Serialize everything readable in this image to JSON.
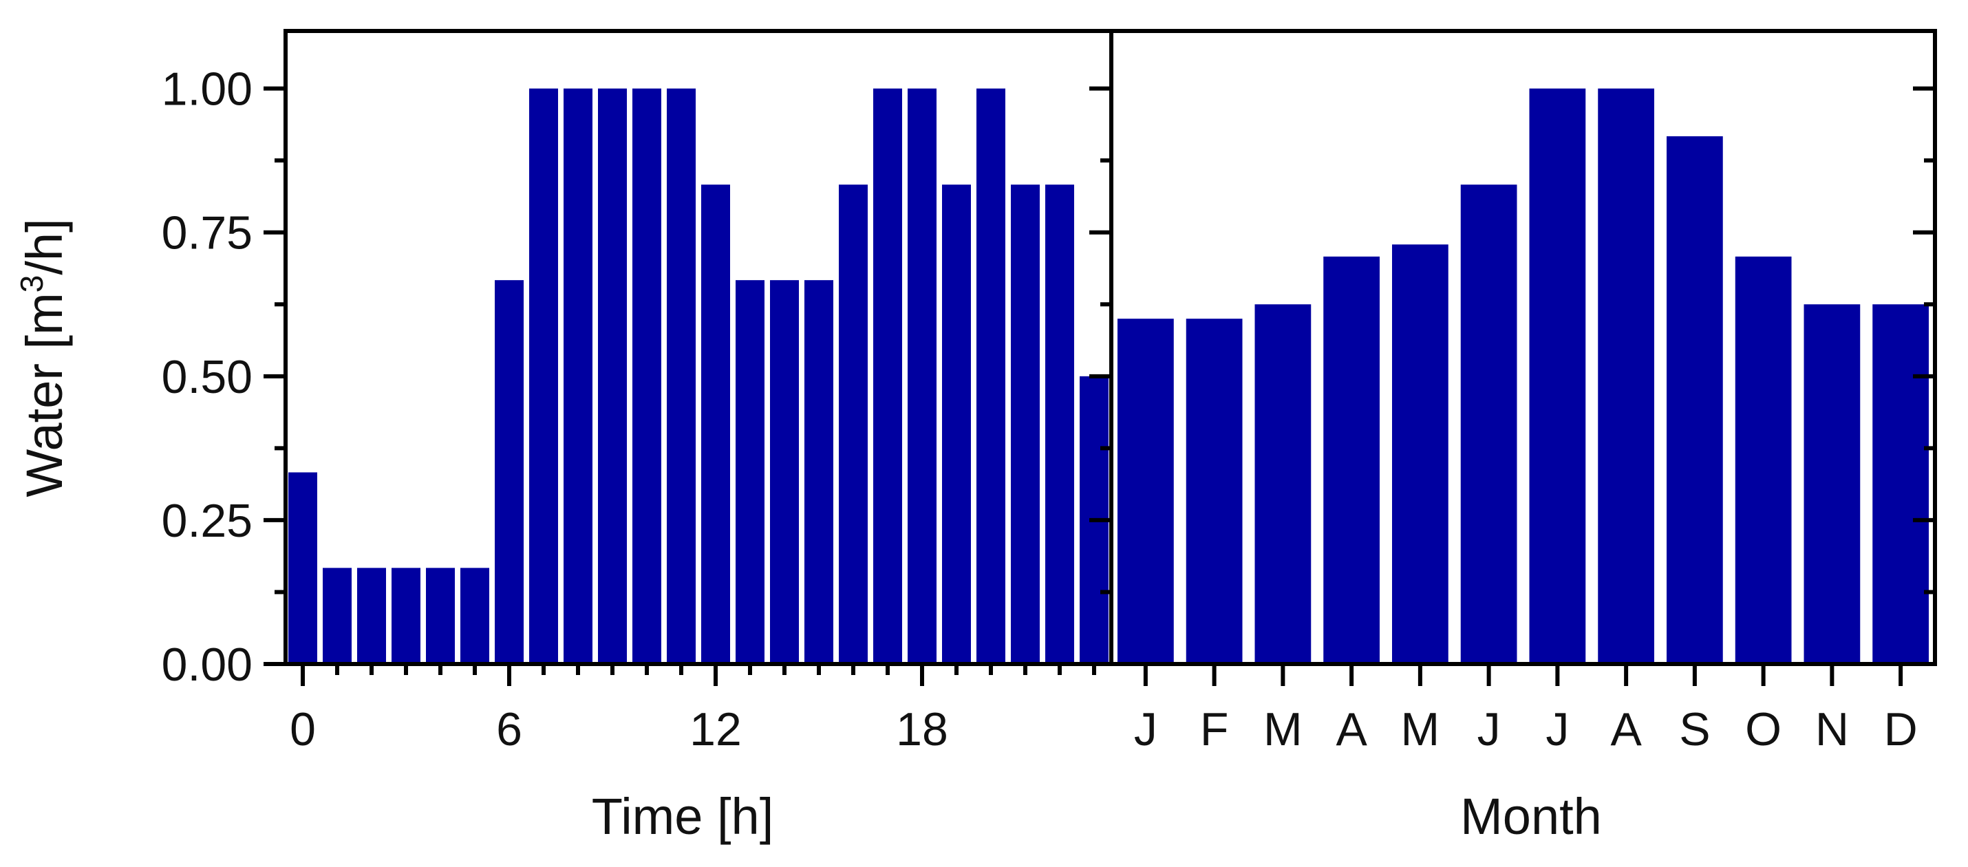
{
  "colors": {
    "bar": "#0000a0",
    "axis": "#000000",
    "background": "#ffffff"
  },
  "chart_data": [
    {
      "type": "bar",
      "xlabel": "Time [h]",
      "ylabel": "Water [m³/h]",
      "ylim": [
        0,
        1.1
      ],
      "y_ticks": [
        "0.00",
        "0.25",
        "0.50",
        "0.75",
        "1.00"
      ],
      "x_ticks": [
        "0",
        "6",
        "12",
        "18"
      ],
      "x": [
        0,
        1,
        2,
        3,
        4,
        5,
        6,
        7,
        8,
        9,
        10,
        11,
        12,
        13,
        14,
        15,
        16,
        17,
        18,
        19,
        20,
        21,
        22,
        23
      ],
      "values": [
        0.333,
        0.167,
        0.167,
        0.167,
        0.167,
        0.167,
        0.667,
        1.0,
        1.0,
        1.0,
        1.0,
        1.0,
        0.833,
        0.667,
        0.667,
        0.667,
        0.833,
        1.0,
        1.0,
        0.833,
        1.0,
        0.833,
        0.833,
        0.5
      ],
      "grid": false
    },
    {
      "type": "bar",
      "xlabel": "Month",
      "ylim": [
        0,
        1.1
      ],
      "categories": [
        "J",
        "F",
        "M",
        "A",
        "M",
        "J",
        "J",
        "A",
        "S",
        "O",
        "N",
        "D"
      ],
      "values": [
        0.6,
        0.6,
        0.625,
        0.708,
        0.729,
        0.833,
        1.0,
        1.0,
        0.917,
        0.708,
        0.625,
        0.625
      ],
      "grid": false
    }
  ]
}
